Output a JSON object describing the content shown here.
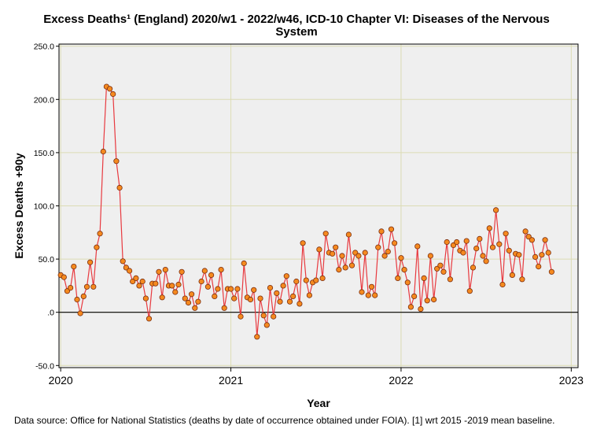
{
  "chart_data": {
    "type": "line",
    "title_line1": "Excess Deaths¹ (England) 2020/w1 - 2022/w46, ICD-10 Chapter VI: Diseases of the Nervous",
    "title_line2": "System",
    "xlabel": "Year",
    "ylabel": "Excess Deaths +90y",
    "xlim": [
      2019.99,
      2023.04
    ],
    "ylim": [
      -52,
      252
    ],
    "y_ticks": [
      -50,
      0,
      50,
      100,
      150,
      200,
      250
    ],
    "y_tick_labels": [
      "-50.0",
      ".0",
      "50.0",
      "100.0",
      "150.0",
      "200.0",
      "250.0"
    ],
    "x_ticks": [
      2020,
      2021,
      2022,
      2023
    ],
    "x_tick_labels": [
      "2020",
      "2021",
      "2022",
      "2023"
    ],
    "zero_line": 0,
    "grid": true,
    "start_year": 2020,
    "weeks_per_year": 52,
    "series": [
      {
        "name": "Excess Deaths +90y",
        "values": [
          35,
          33,
          20,
          23,
          43,
          12,
          -1,
          15,
          24,
          47,
          24,
          61,
          74,
          151,
          212,
          210,
          205,
          142,
          117,
          48,
          42,
          39,
          29,
          32,
          25,
          29,
          13,
          -6,
          27,
          27,
          38,
          14,
          40,
          25,
          25,
          19,
          26,
          38,
          13,
          9,
          17,
          4,
          10,
          29,
          39,
          24,
          35,
          15,
          22,
          40,
          4,
          22,
          22,
          13,
          22,
          -4,
          46,
          14,
          12,
          21,
          -23,
          13,
          -3,
          -12,
          23,
          -4,
          18,
          10,
          25,
          34,
          10,
          15,
          29,
          8,
          65,
          30,
          16,
          28,
          30,
          59,
          32,
          74,
          56,
          55,
          61,
          40,
          53,
          42,
          73,
          44,
          56,
          53,
          19,
          56,
          16,
          24,
          16,
          61,
          76,
          53,
          57,
          78,
          65,
          32,
          51,
          40,
          28,
          5,
          15,
          62,
          3,
          32,
          11,
          53,
          12,
          41,
          44,
          38,
          66,
          31,
          63,
          66,
          58,
          56,
          67,
          20,
          42,
          60,
          69,
          53,
          48,
          79,
          61,
          96,
          64,
          26,
          74,
          58,
          35,
          55,
          54,
          31,
          76,
          71,
          68,
          52,
          43,
          54,
          68,
          56,
          38
        ]
      }
    ]
  },
  "footnote": "Data source: Office for National Statistics (deaths by date of occurrence obtained under FOIA). [1] wrt 2015 -2019 mean baseline.",
  "colors": {
    "plot_background": "#efefef",
    "grid": "#dcdcb4",
    "line": "#e8393f",
    "marker_fill": "#f58a1f",
    "marker_stroke": "#7a2d10",
    "zero_line": "#000000"
  }
}
